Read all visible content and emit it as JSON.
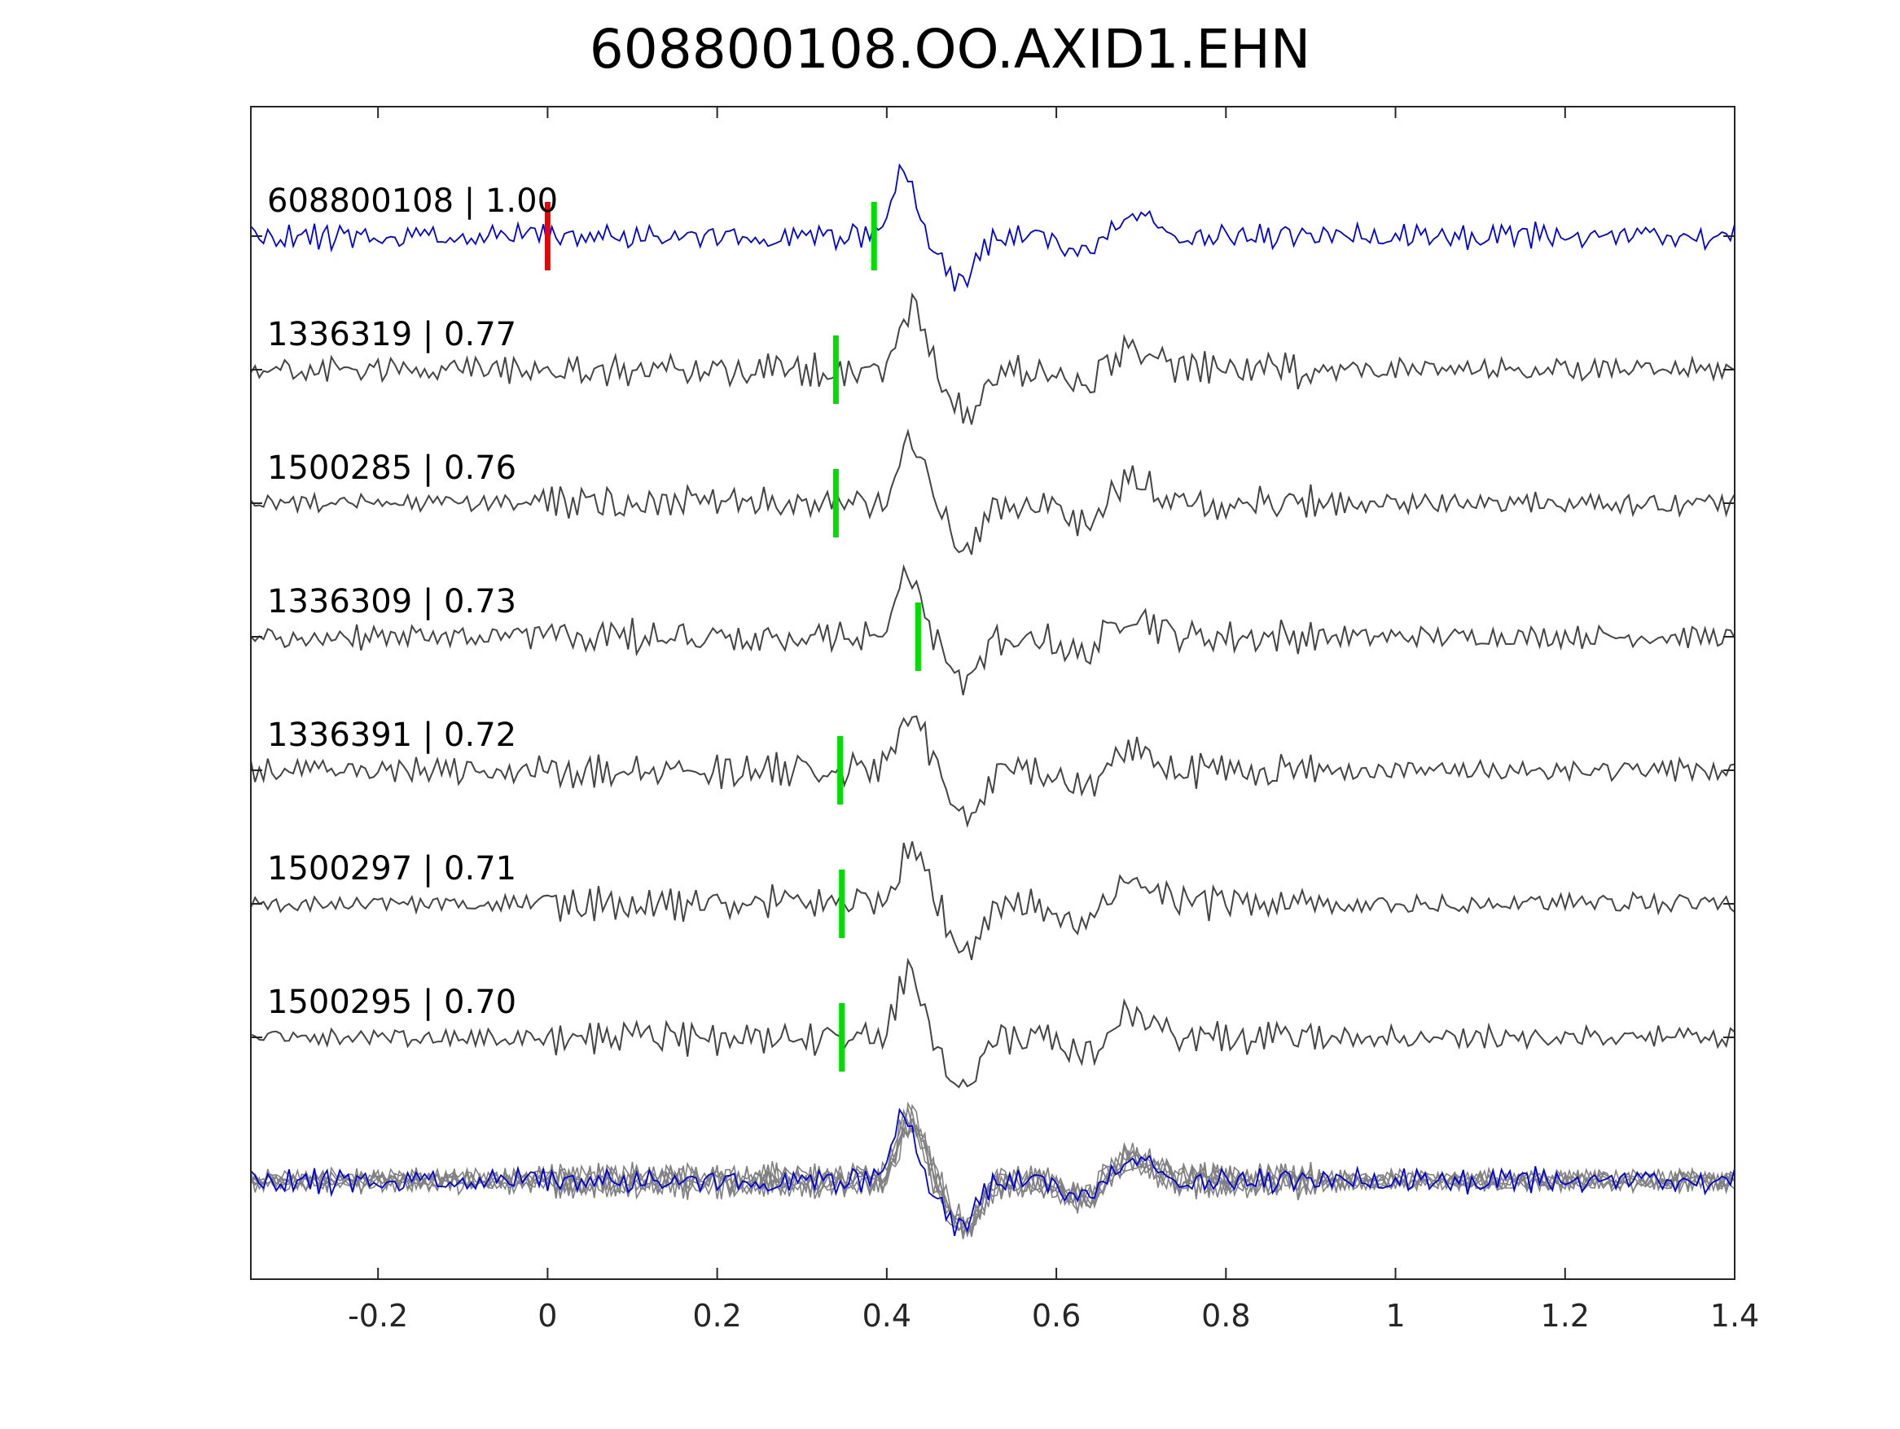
{
  "chart_data": {
    "type": "line",
    "title": "608800108.OO.AXID1.EHN",
    "xlabel": "",
    "ylabel": "",
    "xlim": [
      -0.35,
      1.4
    ],
    "xticks": [
      -0.2,
      0,
      0.2,
      0.4,
      0.6,
      0.8,
      1,
      1.2,
      1.4
    ],
    "xtick_labels": [
      "-0.2",
      "0",
      "0.2",
      "0.4",
      "0.6",
      "0.8",
      "1",
      "1.2",
      "1.4"
    ],
    "grid": false,
    "traces": [
      {
        "name": "608800108 | 1.00",
        "label": "608800108 | 1.00",
        "color": "#0000dd",
        "reference": true,
        "red_pick": 0.0,
        "green_pick": 0.385,
        "peak": 0.42,
        "seed": 11
      },
      {
        "name": "1336319 | 0.77",
        "label": "1336319 | 0.77",
        "color": "#444444",
        "green_pick": 0.34,
        "peak": 0.43,
        "seed": 23
      },
      {
        "name": "1500285 | 0.76",
        "label": "1500285 | 0.76",
        "color": "#444444",
        "green_pick": 0.34,
        "peak": 0.43,
        "seed": 37
      },
      {
        "name": "1336309 | 0.73",
        "label": "1336309 | 0.73",
        "color": "#444444",
        "green_pick": 0.437,
        "peak": 0.425,
        "seed": 41
      },
      {
        "name": "1336391 | 0.72",
        "label": "1336391 | 0.72",
        "color": "#444444",
        "green_pick": 0.345,
        "peak": 0.43,
        "seed": 53
      },
      {
        "name": "1500297 | 0.71",
        "label": "1500297 | 0.71",
        "color": "#444444",
        "green_pick": 0.347,
        "peak": 0.43,
        "seed": 67
      },
      {
        "name": "1500295 | 0.70",
        "label": "1500295 | 0.70",
        "color": "#444444",
        "green_pick": 0.347,
        "peak": 0.425,
        "seed": 79
      }
    ],
    "stack_colors": {
      "reference": "#0000dd",
      "others": "#808080"
    },
    "pick_colors": {
      "red": "#ee0000",
      "green": "#00dd00"
    }
  }
}
